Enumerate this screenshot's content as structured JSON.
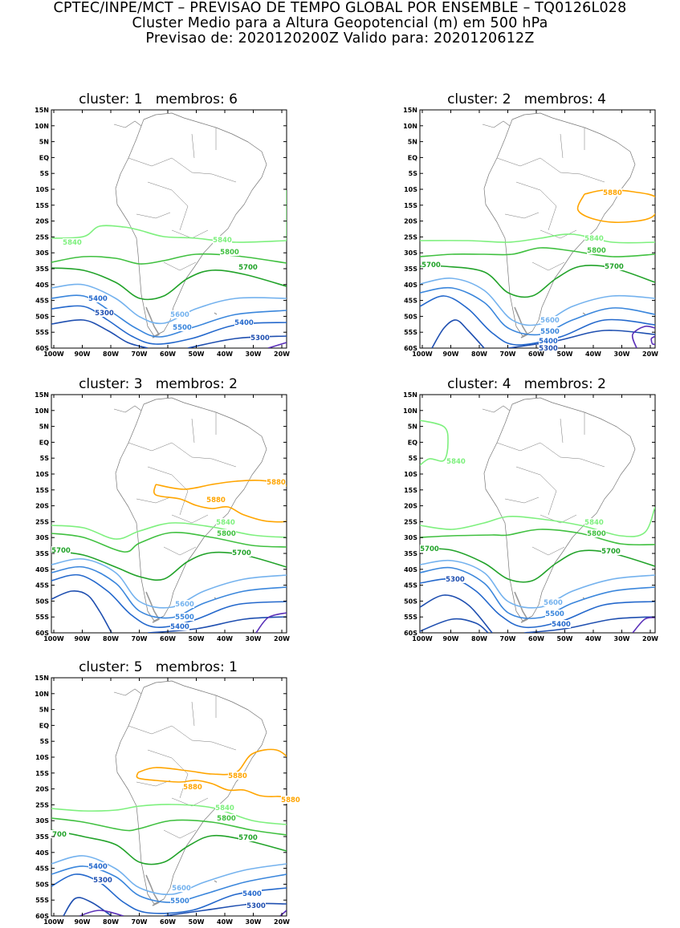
{
  "header": {
    "line1": "CPTEC/INPE/MCT – PREVISAO DE TEMPO GLOBAL POR ENSEMBLE – TQ0126L028",
    "line2": "Cluster Medio para a Altura Geopotencial (m) em 500 hPa",
    "line3": "Previsao de: 2020120200Z    Valido para: 2020120612Z"
  },
  "axes": {
    "lat_ticks": [
      "15N",
      "10N",
      "5N",
      "EQ",
      "5S",
      "10S",
      "15S",
      "20S",
      "25S",
      "30S",
      "35S",
      "40S",
      "45S",
      "50S",
      "55S",
      "60S"
    ],
    "lon_ticks": [
      "100W",
      "90W",
      "80W",
      "70W",
      "60W",
      "50W",
      "40W",
      "30W",
      "20W"
    ]
  },
  "colors": {
    "c5300": "#1f4fb0",
    "c5400": "#2468cc",
    "c5500": "#3a86dc",
    "c5600": "#74b2ee",
    "c5700": "#22a32a",
    "c5800": "#40c040",
    "c5840": "#7ef07e",
    "c5880": "#ffa500",
    "c5200": "#5a30b8",
    "coast": "#777777"
  },
  "panels": [
    {
      "title": "cluster: 1   membros: 6",
      "labels": [
        "5840",
        "5840",
        "5800",
        "5700",
        "5600",
        "5500",
        "5400",
        "5400",
        "5300",
        "5300"
      ]
    },
    {
      "title": "cluster: 2   membros: 4",
      "labels": [
        "5880",
        "5840",
        "5800",
        "5700",
        "5700",
        "5600",
        "5500",
        "5400",
        "5300"
      ]
    },
    {
      "title": "cluster: 3   membros: 2",
      "labels": [
        "5880",
        "5880",
        "5840",
        "5800",
        "5700",
        "5700",
        "5600",
        "5500",
        "5400"
      ]
    },
    {
      "title": "cluster: 4   membros: 2",
      "labels": [
        "5840",
        "5840",
        "5800",
        "5700",
        "5700",
        "5600",
        "5500",
        "5400",
        "5300"
      ]
    },
    {
      "title": "cluster: 5   membros: 1",
      "labels": [
        "5880",
        "5880",
        "5880",
        "5840",
        "5800",
        "5700",
        "700",
        "5600",
        "5500",
        "5400",
        "5400",
        "5300",
        "5300"
      ]
    }
  ]
}
